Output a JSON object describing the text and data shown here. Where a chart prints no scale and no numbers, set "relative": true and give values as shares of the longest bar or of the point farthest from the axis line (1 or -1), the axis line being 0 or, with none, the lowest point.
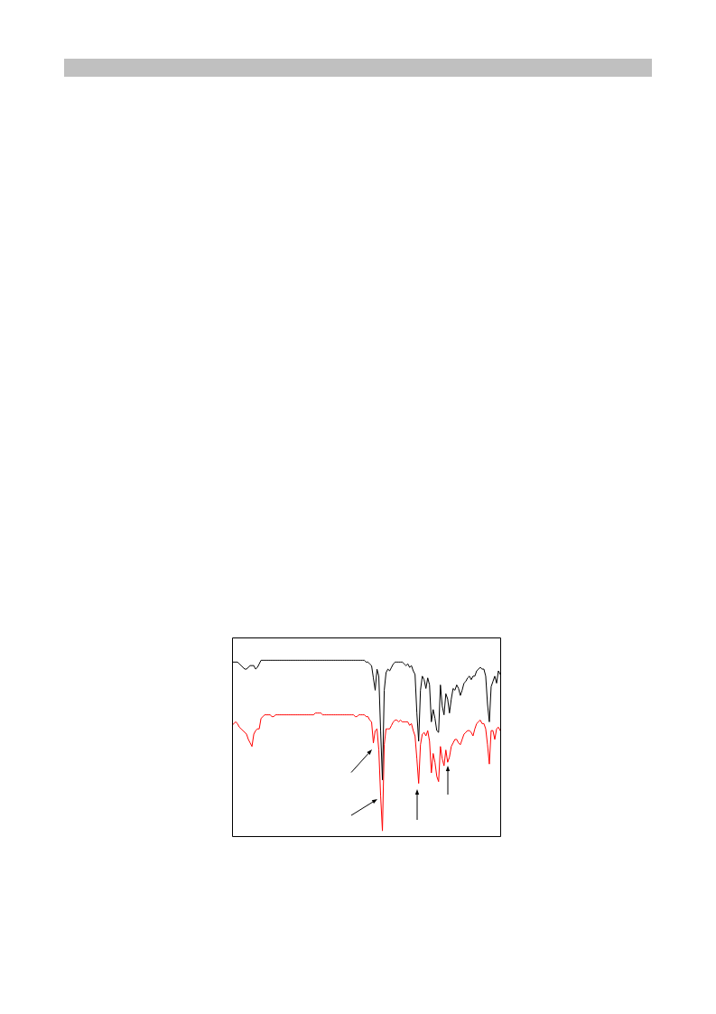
{
  "chart_data": {
    "type": "line",
    "relative": true,
    "marker": "none",
    "categories": [
      null,
      null,
      null,
      null,
      null,
      null,
      null,
      null,
      null,
      null,
      null,
      null,
      null,
      null,
      null,
      null,
      null,
      null,
      null,
      null,
      null,
      null,
      null,
      null,
      null,
      null,
      null,
      null,
      null,
      null,
      null,
      null,
      null,
      null,
      null,
      null,
      null,
      null,
      null,
      null,
      null,
      null,
      null,
      null,
      null,
      null,
      null,
      null,
      null,
      null,
      null,
      null,
      null,
      null,
      null,
      null,
      null,
      null,
      null,
      null,
      null,
      null,
      null,
      null,
      null,
      null,
      null,
      null,
      null,
      null,
      null,
      null,
      null,
      null,
      null,
      null,
      null,
      null,
      null,
      null,
      null,
      null,
      null,
      null,
      null,
      null,
      null,
      null,
      null,
      null,
      null,
      null,
      null,
      null,
      null,
      null,
      null,
      null,
      null,
      null,
      null,
      null,
      null,
      null,
      null,
      null,
      null,
      null,
      null,
      null,
      null,
      null,
      null,
      null,
      null,
      null,
      null,
      null,
      null,
      null,
      null,
      null,
      null,
      null,
      null,
      null,
      null,
      null,
      null,
      null,
      null,
      null,
      null,
      null,
      null,
      null,
      null,
      null,
      null,
      null,
      null,
      null,
      null,
      null,
      null,
      null,
      null,
      null,
      null
    ],
    "series": [
      {
        "color": "#000000",
        "values": [
          0.99,
          0.99,
          0.99,
          0.99,
          0.98,
          0.97,
          0.96,
          0.95,
          0.95,
          0.96,
          0.97,
          0.97,
          0.97,
          0.95,
          0.96,
          0.98,
          1.0,
          1.0,
          1.0,
          1.0,
          1.0,
          1.0,
          1.0,
          1.0,
          1.0,
          1.0,
          1.0,
          1.0,
          1.0,
          1.0,
          1.0,
          1.0,
          1.0,
          1.0,
          1.0,
          1.0,
          1.0,
          1.0,
          1.0,
          1.0,
          1.0,
          1.0,
          1.0,
          1.0,
          1.0,
          1.0,
          1.0,
          1.0,
          1.0,
          1.0,
          1.0,
          1.0,
          1.0,
          1.0,
          1.0,
          1.0,
          1.0,
          1.0,
          1.0,
          1.0,
          1.0,
          1.0,
          1.0,
          1.0,
          1.0,
          1.0,
          1.0,
          1.0,
          1.0,
          1.0,
          1.0,
          1.0,
          1.0,
          1.0,
          0.99,
          0.99,
          0.98,
          0.97,
          0.9,
          0.83,
          0.95,
          0.91,
          0.6,
          0.32,
          0.83,
          0.93,
          0.95,
          0.94,
          0.96,
          0.98,
          0.99,
          0.99,
          0.99,
          0.99,
          0.99,
          0.98,
          0.97,
          0.98,
          0.96,
          0.97,
          0.94,
          0.92,
          0.7,
          0.54,
          0.83,
          0.91,
          0.89,
          0.84,
          0.9,
          0.86,
          0.65,
          0.72,
          0.67,
          0.6,
          0.59,
          0.86,
          0.74,
          0.69,
          0.81,
          0.78,
          0.7,
          0.78,
          0.84,
          0.83,
          0.86,
          0.84,
          0.8,
          0.83,
          0.87,
          0.88,
          0.9,
          0.91,
          0.89,
          0.91,
          0.91,
          0.94,
          0.95,
          0.96,
          0.95,
          0.95,
          0.91,
          0.75,
          0.65,
          0.85,
          0.88,
          0.91,
          0.87,
          0.94,
          0.92
        ]
      },
      {
        "color": "#ff0000",
        "values": [
          0.63,
          0.64,
          0.65,
          0.64,
          0.62,
          0.61,
          0.6,
          0.59,
          0.58,
          0.55,
          0.53,
          0.51,
          0.58,
          0.6,
          0.61,
          0.61,
          0.67,
          0.68,
          0.69,
          0.69,
          0.69,
          0.69,
          0.68,
          0.68,
          0.69,
          0.69,
          0.69,
          0.69,
          0.69,
          0.69,
          0.69,
          0.69,
          0.69,
          0.69,
          0.69,
          0.69,
          0.69,
          0.69,
          0.69,
          0.69,
          0.69,
          0.69,
          0.69,
          0.69,
          0.69,
          0.69,
          0.7,
          0.7,
          0.7,
          0.7,
          0.69,
          0.69,
          0.69,
          0.69,
          0.69,
          0.69,
          0.69,
          0.69,
          0.69,
          0.69,
          0.69,
          0.69,
          0.69,
          0.69,
          0.69,
          0.69,
          0.69,
          0.69,
          0.68,
          0.68,
          0.69,
          0.69,
          0.69,
          0.69,
          0.68,
          0.68,
          0.66,
          0.65,
          0.53,
          0.6,
          0.61,
          0.49,
          0.23,
          0.03,
          0.52,
          0.61,
          0.61,
          0.61,
          0.63,
          0.65,
          0.66,
          0.66,
          0.65,
          0.66,
          0.65,
          0.65,
          0.65,
          0.65,
          0.63,
          0.64,
          0.6,
          0.57,
          0.44,
          0.3,
          0.52,
          0.58,
          0.59,
          0.57,
          0.6,
          0.54,
          0.36,
          0.47,
          0.42,
          0.34,
          0.31,
          0.51,
          0.44,
          0.4,
          0.49,
          0.42,
          0.45,
          0.51,
          0.53,
          0.55,
          0.55,
          0.53,
          0.52,
          0.55,
          0.58,
          0.59,
          0.6,
          0.6,
          0.59,
          0.57,
          0.61,
          0.64,
          0.65,
          0.66,
          0.64,
          0.64,
          0.61,
          0.52,
          0.41,
          0.6,
          0.6,
          0.55,
          0.61,
          0.62,
          0.6
        ]
      }
    ]
  }
}
